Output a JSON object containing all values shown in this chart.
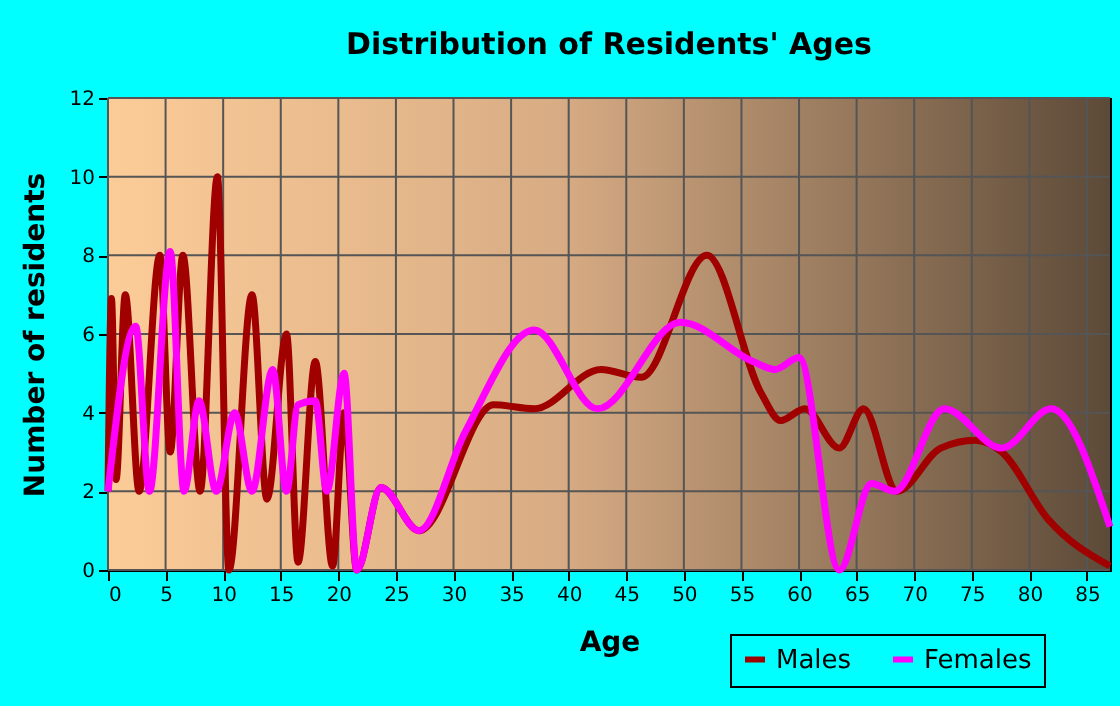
{
  "chart_data": {
    "type": "line",
    "title": "Distribution of Residents' Ages",
    "xlabel": "Age",
    "ylabel": "Number of residents",
    "xlim": [
      0,
      87
    ],
    "xticks": [
      0,
      5,
      10,
      15,
      20,
      25,
      30,
      35,
      40,
      45,
      50,
      55,
      60,
      65,
      70,
      75,
      80,
      85
    ],
    "ylim": [
      0,
      12
    ],
    "yticks": [
      0,
      2,
      4,
      6,
      8,
      10,
      12
    ],
    "grid": true,
    "legend": "bottom right",
    "line_style": "solid",
    "marker": "none",
    "series": [
      {
        "name": "Males",
        "color": "#a00000",
        "x": [
          0,
          0.3,
          0.7,
          1.5,
          2.7,
          4.5,
          5.4,
          6.5,
          8,
          9.5,
          10.5,
          12.5,
          13.8,
          15.5,
          16.5,
          18,
          19.5,
          20.5,
          21.6,
          23.7,
          27,
          33.5,
          37,
          42.8,
          46.3,
          52,
          56.7,
          58.4,
          60.5,
          63.5,
          65.6,
          68.5,
          72.3,
          75.3,
          77.6,
          81.6,
          87
        ],
        "values": [
          2,
          6.9,
          2.3,
          7,
          2,
          8,
          3,
          8,
          2,
          10,
          0,
          7,
          1.8,
          6,
          0.2,
          5.3,
          0.1,
          4,
          0,
          2.1,
          1,
          4.2,
          4.1,
          5.1,
          4.9,
          8,
          4.5,
          3.8,
          4.1,
          3.1,
          4.1,
          2,
          3.1,
          3.3,
          3,
          1.3,
          0.1
        ]
      },
      {
        "name": "Females",
        "color": "#ff00ff",
        "x": [
          0,
          2.4,
          3.6,
          5.4,
          6.6,
          7.9,
          9.4,
          11,
          12.5,
          14.3,
          15.5,
          16.5,
          18,
          19,
          20.5,
          21.6,
          23.7,
          27,
          31,
          37,
          42.5,
          49.7,
          56,
          57.9,
          60,
          63.5,
          66.3,
          68.3,
          72.6,
          77.6,
          81.9,
          87
        ],
        "values": [
          2,
          6.2,
          2,
          8.1,
          2,
          4.3,
          2,
          4,
          2,
          5.1,
          2,
          4.2,
          4.3,
          2,
          5,
          0,
          2.1,
          1,
          3.5,
          6.1,
          4.1,
          6.3,
          5.3,
          5.1,
          5.4,
          0,
          2.2,
          2,
          4.1,
          3.1,
          4.1,
          1.1
        ]
      }
    ]
  }
}
